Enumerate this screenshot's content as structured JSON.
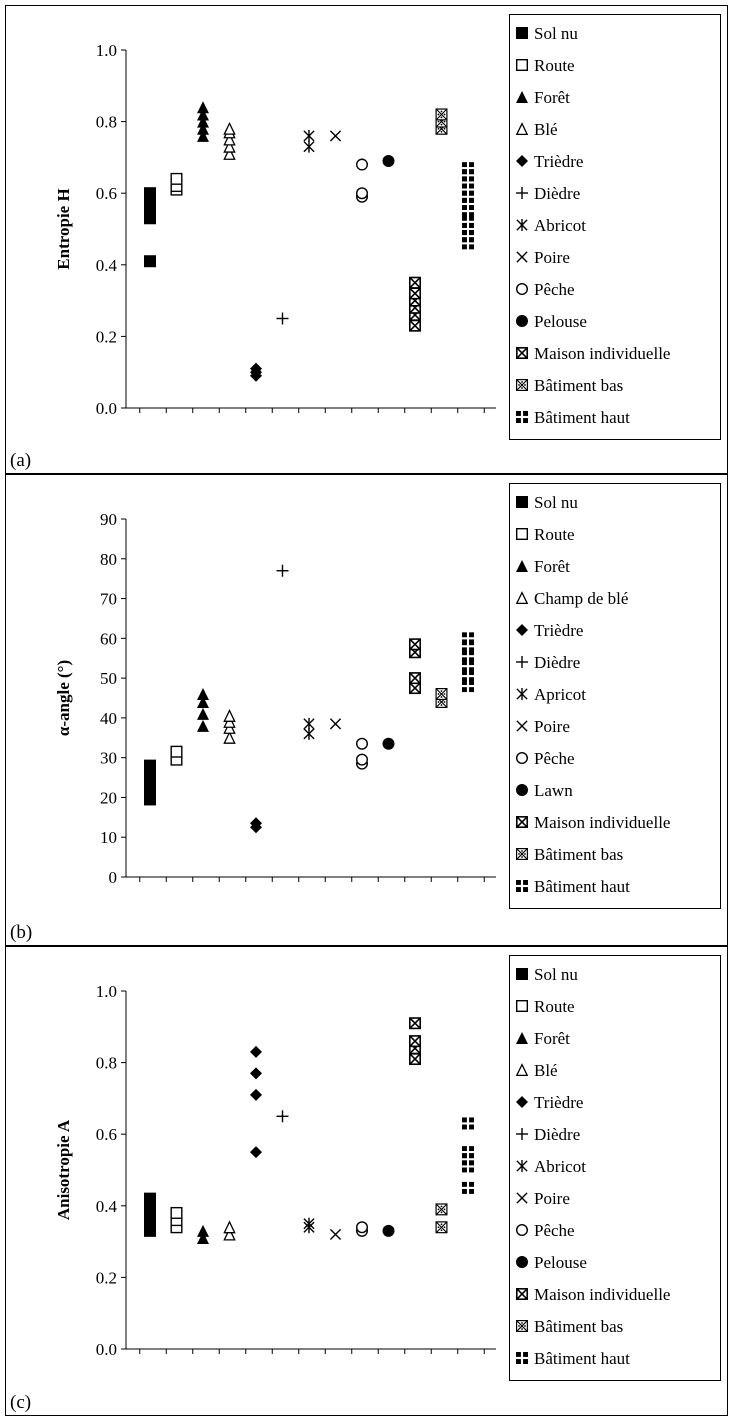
{
  "chart_data": [
    {
      "type": "scatter",
      "panel_label": "(a)",
      "ylabel": "Entropie H",
      "ylim": [
        0,
        1.0
      ],
      "yticks": [
        "0.0",
        "0.2",
        "0.4",
        "0.6",
        "0.8",
        "1.0"
      ],
      "categories": [
        "Sol nu",
        "Route",
        "Forêt",
        "Blé",
        "Trièdre",
        "Dièdre",
        "Abricot",
        "Poire",
        "Pêche",
        "Pelouse",
        "Maison individuelle",
        "Bâtiment bas",
        "Bâtiment haut"
      ],
      "legend_position": "right",
      "series": [
        {
          "name": "Sol nu",
          "marker": "square-filled",
          "x": 1,
          "values": [
            0.41,
            0.53,
            0.55,
            0.57,
            0.59,
            0.6
          ]
        },
        {
          "name": "Route",
          "marker": "square-open",
          "x": 2,
          "values": [
            0.61,
            0.62,
            0.64
          ]
        },
        {
          "name": "Forêt",
          "marker": "triangle-filled",
          "x": 3,
          "values": [
            0.76,
            0.78,
            0.8,
            0.82,
            0.84
          ]
        },
        {
          "name": "Blé",
          "marker": "triangle-open",
          "x": 4,
          "values": [
            0.71,
            0.73,
            0.75,
            0.77,
            0.78
          ]
        },
        {
          "name": "Trièdre",
          "marker": "diamond-filled",
          "x": 5,
          "values": [
            0.09,
            0.1,
            0.11
          ]
        },
        {
          "name": "Dièdre",
          "marker": "plus",
          "x": 6,
          "values": [
            0.25
          ]
        },
        {
          "name": "Abricot",
          "marker": "asterisk",
          "x": 7,
          "values": [
            0.73,
            0.76
          ]
        },
        {
          "name": "Poire",
          "marker": "x",
          "x": 8,
          "values": [
            0.76
          ]
        },
        {
          "name": "Pêche",
          "marker": "circle-open",
          "x": 9,
          "values": [
            0.59,
            0.6,
            0.68
          ]
        },
        {
          "name": "Pelouse",
          "marker": "circle-filled",
          "x": 10,
          "values": [
            0.69
          ]
        },
        {
          "name": "Maison individuelle",
          "marker": "boxx",
          "x": 11,
          "values": [
            0.23,
            0.26,
            0.28,
            0.3,
            0.32,
            0.35
          ]
        },
        {
          "name": "Bâtiment bas",
          "marker": "boxx-dot",
          "x": 12,
          "values": [
            0.78,
            0.8,
            0.82
          ]
        },
        {
          "name": "Bâtiment haut",
          "marker": "quad",
          "x": 13,
          "values": [
            0.46,
            0.48,
            0.5,
            0.52,
            0.55,
            0.57,
            0.59,
            0.61,
            0.63,
            0.65,
            0.67
          ]
        }
      ]
    },
    {
      "type": "scatter",
      "panel_label": "(b)",
      "ylabel": "α-angle (°)",
      "ylim": [
        0,
        90
      ],
      "yticks": [
        "0",
        "10",
        "20",
        "30",
        "40",
        "50",
        "60",
        "70",
        "80",
        "90"
      ],
      "categories": [
        "Sol nu",
        "Route",
        "Forêt",
        "Champ de blé",
        "Trièdre",
        "Dièdre",
        "Apricot",
        "Poire",
        "Pêche",
        "Lawn",
        "Maison individuelle",
        "Bâtiment bas",
        "Bâtiment haut"
      ],
      "legend_position": "right",
      "series": [
        {
          "name": "Sol nu",
          "marker": "square-filled",
          "x": 1,
          "values": [
            19.5,
            22,
            24,
            26,
            28
          ]
        },
        {
          "name": "Route",
          "marker": "square-open",
          "x": 2,
          "values": [
            29.5,
            31.5
          ]
        },
        {
          "name": "Forêt",
          "marker": "triangle-filled",
          "x": 3,
          "values": [
            38,
            41,
            44,
            46
          ]
        },
        {
          "name": "Champ de blé",
          "marker": "triangle-open",
          "x": 4,
          "values": [
            35,
            37.5,
            39,
            40.5
          ]
        },
        {
          "name": "Trièdre",
          "marker": "diamond-filled",
          "x": 5,
          "values": [
            12.5,
            13.5
          ]
        },
        {
          "name": "Dièdre",
          "marker": "plus",
          "x": 6,
          "values": [
            77
          ]
        },
        {
          "name": "Apricot",
          "marker": "asterisk",
          "x": 7,
          "values": [
            36,
            38.5
          ]
        },
        {
          "name": "Poire",
          "marker": "x",
          "x": 8,
          "values": [
            38.5
          ]
        },
        {
          "name": "Pêche",
          "marker": "circle-open",
          "x": 9,
          "values": [
            28.5,
            29.5,
            33.5
          ]
        },
        {
          "name": "Lawn",
          "marker": "circle-filled",
          "x": 10,
          "values": [
            33.5
          ]
        },
        {
          "name": "Maison individuelle",
          "marker": "boxx",
          "x": 11,
          "values": [
            47.5,
            50,
            56.5,
            58.5
          ]
        },
        {
          "name": "Bâtiment bas",
          "marker": "boxx-dot",
          "x": 12,
          "values": [
            44,
            46
          ]
        },
        {
          "name": "Bâtiment haut",
          "marker": "quad",
          "x": 13,
          "values": [
            48,
            50.5,
            53,
            55.5,
            58,
            60
          ]
        }
      ]
    },
    {
      "type": "scatter",
      "panel_label": "(c)",
      "ylabel": "Anisotropie A",
      "ylim": [
        0,
        1.0
      ],
      "yticks": [
        "0.0",
        "0.2",
        "0.4",
        "0.6",
        "0.8",
        "1.0"
      ],
      "categories": [
        "Sol nu",
        "Route",
        "Forêt",
        "Blé",
        "Trièdre",
        "Dièdre",
        "Abricot",
        "Poire",
        "Pêche",
        "Pelouse",
        "Maison individuelle",
        "Bâtiment bas",
        "Bâtiment haut"
      ],
      "legend_position": "right",
      "series": [
        {
          "name": "Sol nu",
          "marker": "square-filled",
          "x": 1,
          "values": [
            0.33,
            0.35,
            0.37,
            0.39,
            0.41,
            0.42
          ]
        },
        {
          "name": "Route",
          "marker": "square-open",
          "x": 2,
          "values": [
            0.34,
            0.36,
            0.38
          ]
        },
        {
          "name": "Forêt",
          "marker": "triangle-filled",
          "x": 3,
          "values": [
            0.31,
            0.33
          ]
        },
        {
          "name": "Blé",
          "marker": "triangle-open",
          "x": 4,
          "values": [
            0.32,
            0.34
          ]
        },
        {
          "name": "Trièdre",
          "marker": "diamond-filled",
          "x": 5,
          "values": [
            0.55,
            0.71,
            0.77,
            0.83
          ]
        },
        {
          "name": "Dièdre",
          "marker": "plus",
          "x": 6,
          "values": [
            0.65
          ]
        },
        {
          "name": "Abricot",
          "marker": "asterisk",
          "x": 7,
          "values": [
            0.34,
            0.35
          ]
        },
        {
          "name": "Poire",
          "marker": "x",
          "x": 8,
          "values": [
            0.32
          ]
        },
        {
          "name": "Pêche",
          "marker": "circle-open",
          "x": 9,
          "values": [
            0.33,
            0.34
          ]
        },
        {
          "name": "Pelouse",
          "marker": "circle-filled",
          "x": 10,
          "values": [
            0.33
          ]
        },
        {
          "name": "Maison individuelle",
          "marker": "boxx",
          "x": 11,
          "values": [
            0.81,
            0.84,
            0.86,
            0.91
          ]
        },
        {
          "name": "Bâtiment bas",
          "marker": "boxx-dot",
          "x": 12,
          "values": [
            0.34,
            0.39
          ]
        },
        {
          "name": "Bâtiment haut",
          "marker": "quad",
          "x": 13,
          "values": [
            0.45,
            0.51,
            0.53,
            0.55,
            0.63
          ]
        }
      ]
    }
  ]
}
